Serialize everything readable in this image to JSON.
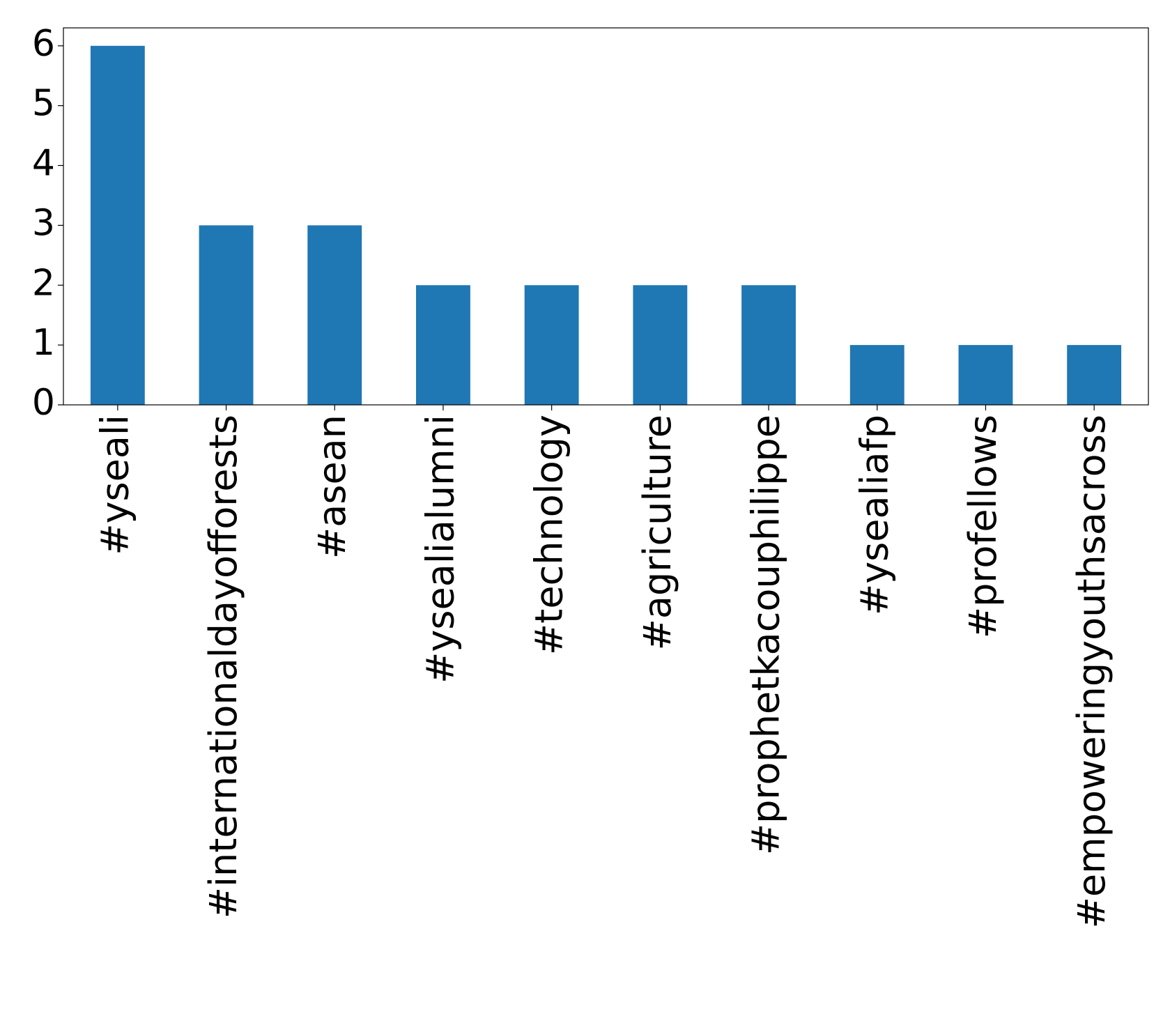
{
  "chart_data": {
    "type": "bar",
    "categories": [
      "#yseali",
      "#internationaldayofforests",
      "#asean",
      "#ysealialumni",
      "#technology",
      "#agriculture",
      "#prophetkacouphilippe",
      "#ysealiafp",
      "#profellows",
      "#empoweringyouthsacross"
    ],
    "values": [
      6,
      3,
      3,
      2,
      2,
      2,
      2,
      1,
      1,
      1
    ],
    "color": "#1f77b4",
    "ylim": [
      0,
      6.3
    ],
    "yticks": [
      0,
      1,
      2,
      3,
      4,
      5,
      6
    ],
    "grid": false
  }
}
